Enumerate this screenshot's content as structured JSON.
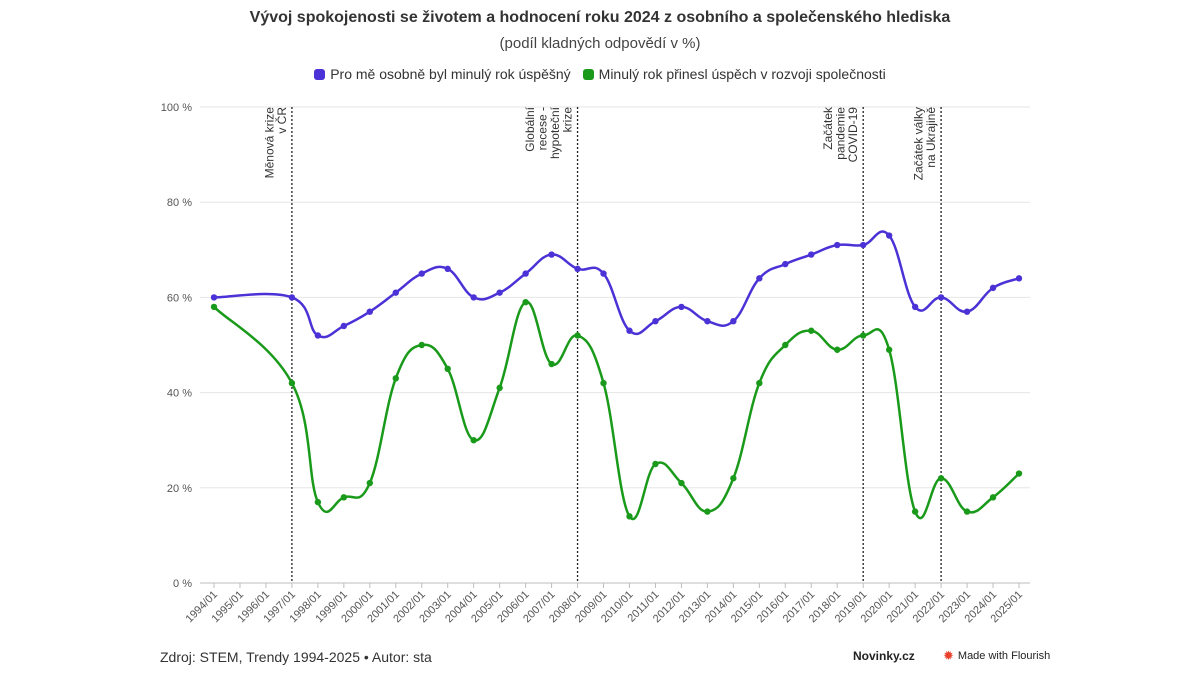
{
  "title": "Vývoj spokojenosti se životem a hodnocení roku 2024 z osobního a společenského hlediska",
  "subtitle": "(podíl kladných odpovědí v %)",
  "legend": [
    {
      "label": "Pro mě osobně byl minulý rok úspěšný",
      "color": "#4a32d6"
    },
    {
      "label": "Minulý rok přinesl úspěch v rozvoji společnosti",
      "color": "#1a9a1a"
    }
  ],
  "footer": {
    "source": "Zdroj: STEM, Trendy 1994-2025 • Autor: sta",
    "brand": "Novinky.cz",
    "flourish": "Made with Flourish"
  },
  "chart_data": {
    "type": "line",
    "title": "Vývoj spokojenosti se životem a hodnocení roku 2024 z osobního a společenského hlediska",
    "subtitle": "(podíl kladných odpovědí v %)",
    "categories": [
      "1994/01",
      "1995/01",
      "1996/01",
      "1997/01",
      "1998/01",
      "1999/01",
      "2000/01",
      "2001/01",
      "2002/01",
      "2003/01",
      "2004/01",
      "2005/01",
      "2006/01",
      "2007/01",
      "2008/01",
      "2009/01",
      "2010/01",
      "2011/01",
      "2012/01",
      "2013/01",
      "2014/01",
      "2015/01",
      "2016/01",
      "2017/01",
      "2018/01",
      "2019/01",
      "2020/01",
      "2021/01",
      "2022/01",
      "2023/01",
      "2024/01",
      "2025/01"
    ],
    "series": [
      {
        "name": "Pro mě osobně byl minulý rok úspěšný",
        "color": "#4a32d6",
        "values": [
          60,
          null,
          null,
          60,
          52,
          54,
          57,
          61,
          65,
          66,
          60,
          61,
          65,
          69,
          66,
          65,
          53,
          55,
          58,
          55,
          55,
          64,
          67,
          69,
          71,
          71,
          73,
          58,
          60,
          57,
          62,
          64
        ]
      },
      {
        "name": "Minulý rok přinesl úspěch v rozvoji společnosti",
        "color": "#1a9a1a",
        "values": [
          58,
          null,
          null,
          42,
          17,
          18,
          21,
          43,
          50,
          45,
          30,
          41,
          59,
          46,
          52,
          42,
          14,
          25,
          21,
          15,
          22,
          42,
          50,
          53,
          49,
          52,
          49,
          15,
          22,
          15,
          18,
          23
        ]
      }
    ],
    "yticks": [
      "0 %",
      "20 %",
      "40 %",
      "60 %",
      "80 %",
      "100 %"
    ],
    "ylim": [
      0,
      100
    ],
    "annotations": [
      {
        "category": "1997/01",
        "lines": [
          "Měnová krize",
          "v ČR"
        ]
      },
      {
        "category": "2008/01",
        "lines": [
          "Globální",
          "recese -",
          "hypoteční",
          "krize"
        ]
      },
      {
        "category": "2019/01",
        "lines": [
          "Začátek",
          "pandemie",
          "COVID-19"
        ]
      },
      {
        "category": "2022/01",
        "lines": [
          "Začátek války",
          "na Ukrajině"
        ]
      }
    ]
  }
}
